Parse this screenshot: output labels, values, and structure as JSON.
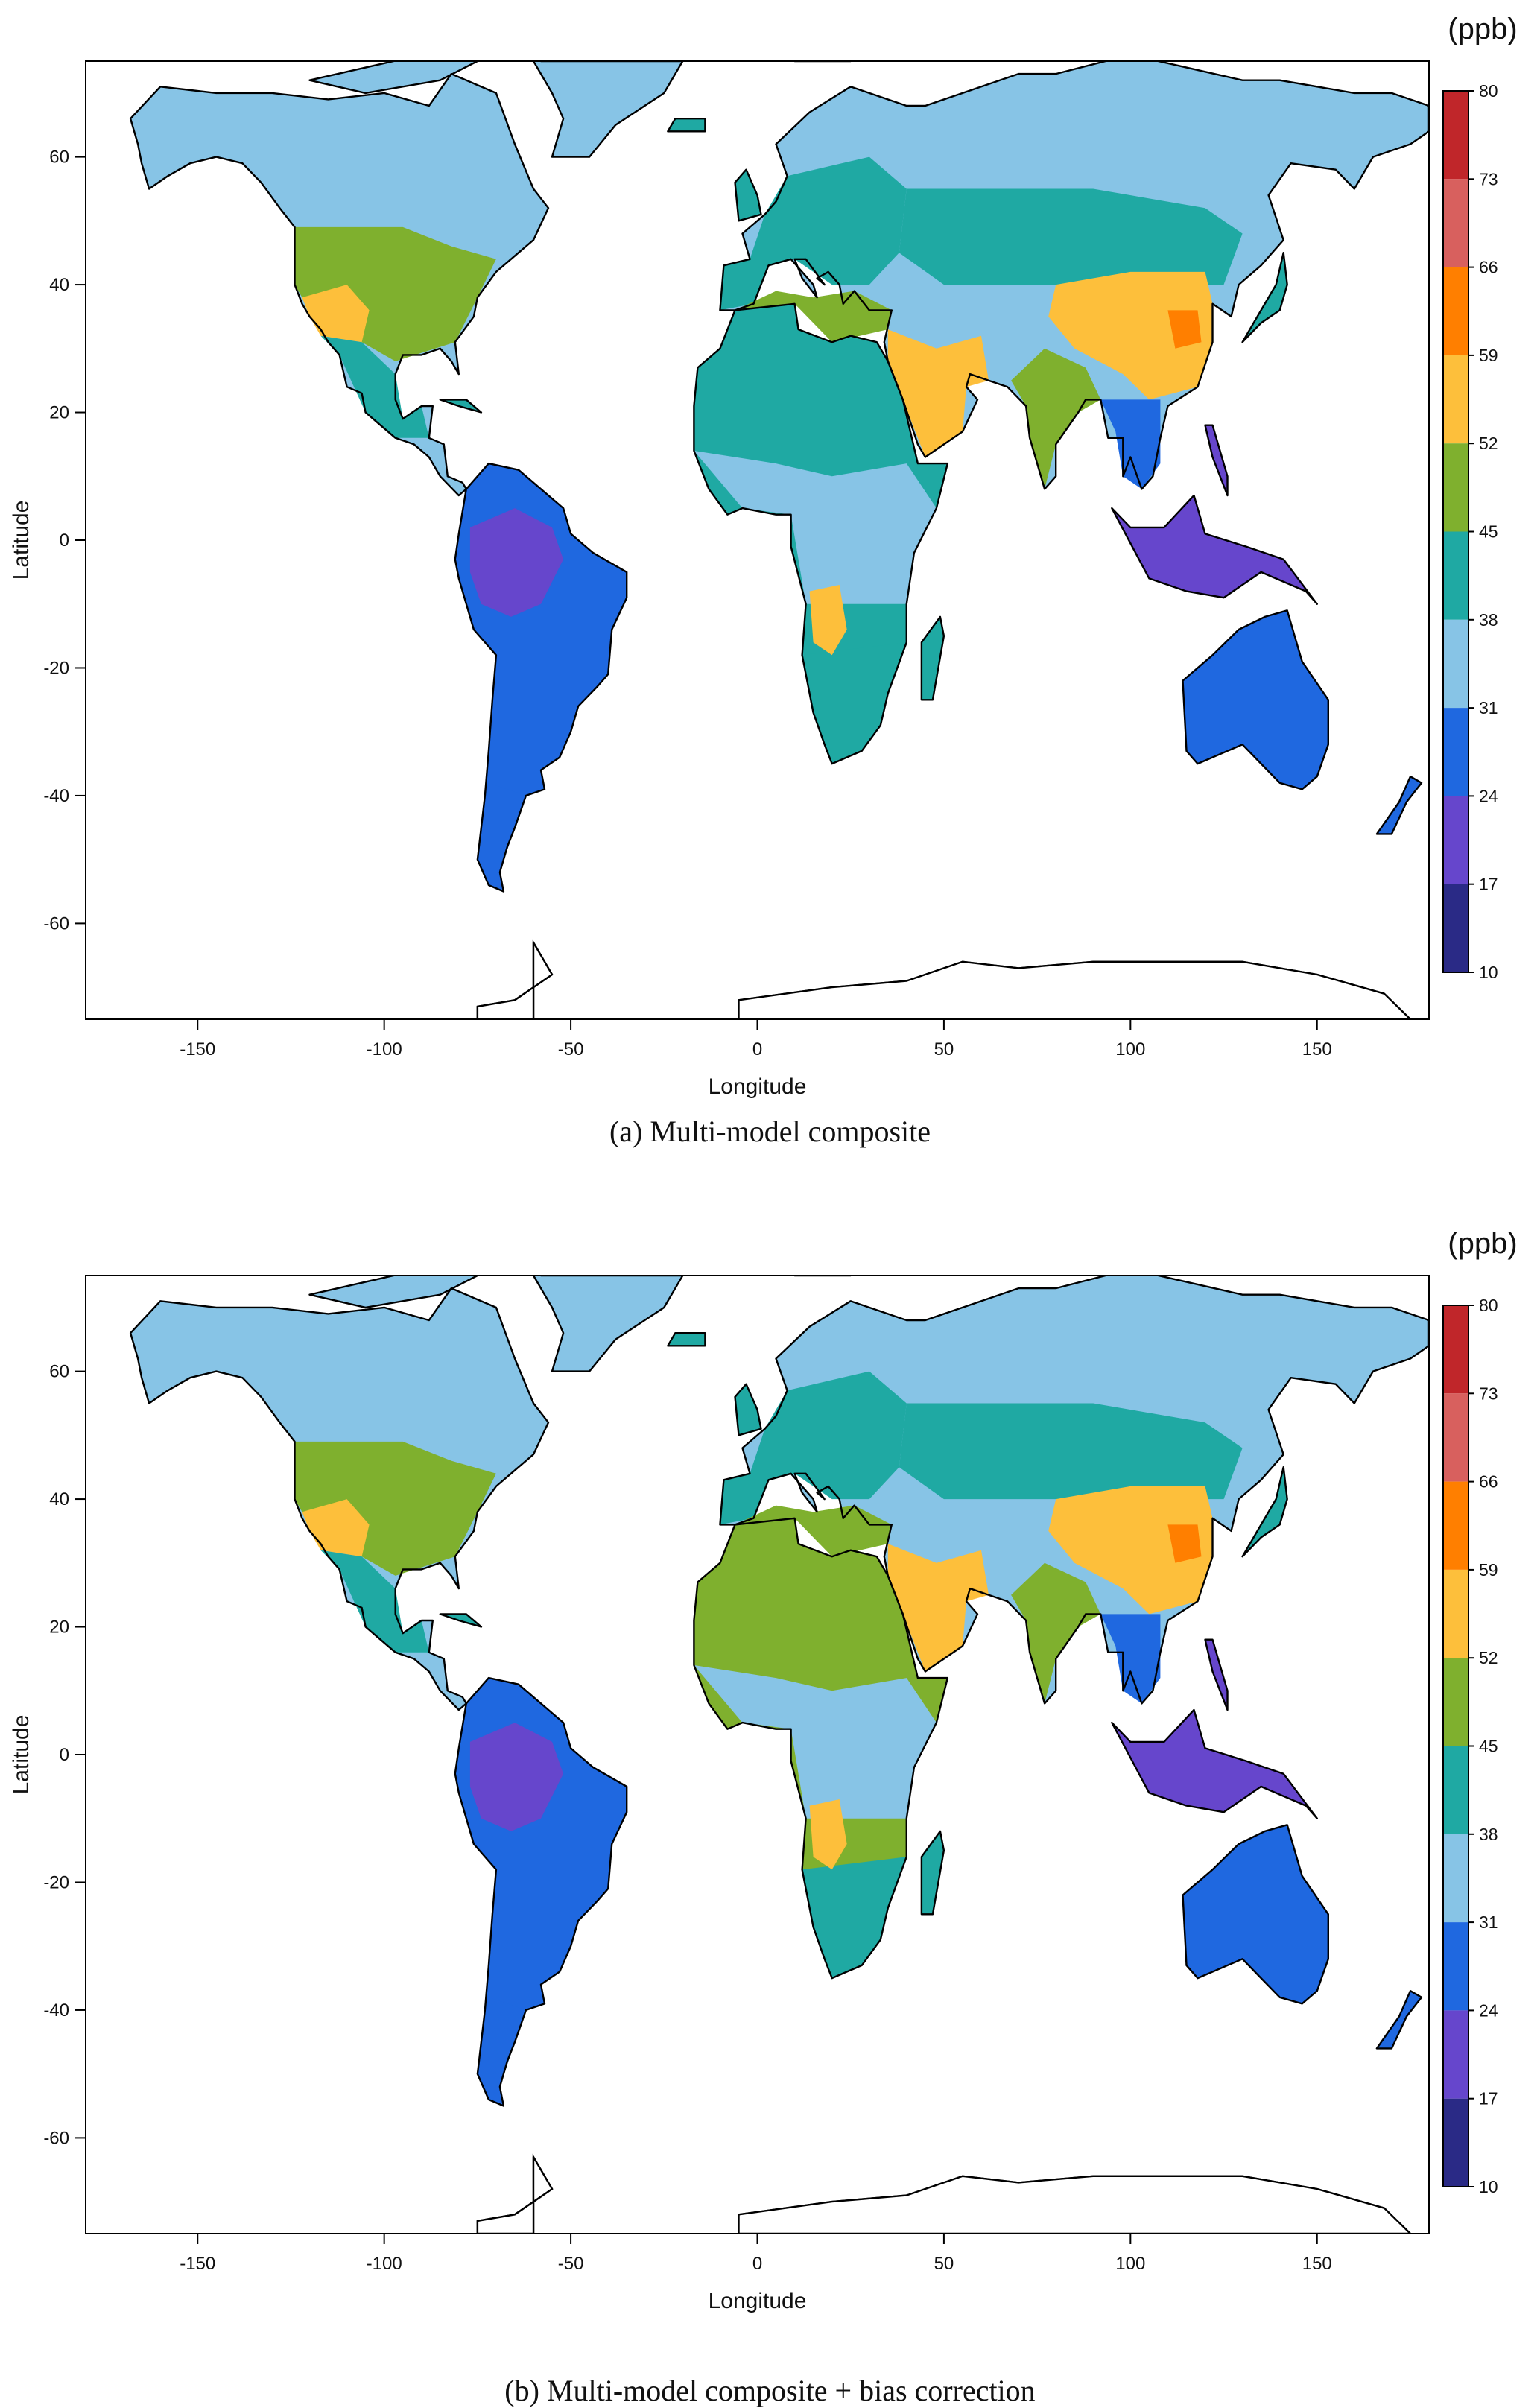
{
  "figure": {
    "panels": [
      {
        "id": "a",
        "caption": "(a) Multi-model composite"
      },
      {
        "id": "b",
        "caption": "(b) Multi-model composite + bias correction"
      }
    ],
    "xlabel": "Longitude",
    "ylabel": "Latitude",
    "unit_label": "(ppb)",
    "x_ticks": [
      "-150",
      "-100",
      "-50",
      "0",
      "50",
      "100",
      "150"
    ],
    "y_ticks": [
      "60",
      "40",
      "20",
      "0",
      "-20",
      "-40",
      "-60"
    ],
    "colorbar": {
      "ticks": [
        "80",
        "73",
        "66",
        "59",
        "52",
        "45",
        "38",
        "31",
        "24",
        "17",
        "10"
      ],
      "colors": [
        "#C0262A",
        "#D8605E",
        "#FF7F00",
        "#FDBF3B",
        "#7FB02E",
        "#1FA9A3",
        "#87C4E6",
        "#1F68E0",
        "#6646CC",
        "#2A2A86"
      ]
    }
  },
  "chart_data": [
    {
      "type": "heatmap",
      "title": "(a) Multi-model composite",
      "xlabel": "Longitude",
      "ylabel": "Latitude",
      "xlim": [
        -180,
        180
      ],
      "ylim": [
        -75,
        75
      ],
      "colorbar_unit": "(ppb)",
      "colorbar_levels": [
        10,
        17,
        24,
        31,
        38,
        45,
        52,
        59,
        66,
        73,
        80
      ],
      "regions": [
        {
          "name": "Canada/Alaska",
          "value": 34
        },
        {
          "name": "Contiguous US",
          "value": 48
        },
        {
          "name": "US Southwest",
          "value": 54
        },
        {
          "name": "Mexico",
          "value": 42
        },
        {
          "name": "Amazon",
          "value": 20
        },
        {
          "name": "Brazil/South America",
          "value": 28
        },
        {
          "name": "Patagonia",
          "value": 27
        },
        {
          "name": "Europe",
          "value": 41
        },
        {
          "name": "Mediterranean",
          "value": 50
        },
        {
          "name": "Northern Russia",
          "value": 34
        },
        {
          "name": "Central Asia",
          "value": 41
        },
        {
          "name": "Middle East",
          "value": 55
        },
        {
          "name": "Sahara",
          "value": 43
        },
        {
          "name": "Central Africa",
          "value": 36
        },
        {
          "name": "Southern Africa",
          "value": 40
        },
        {
          "name": "Angola/Zambia hotspot",
          "value": 57
        },
        {
          "name": "India",
          "value": 48
        },
        {
          "name": "China",
          "value": 56
        },
        {
          "name": "Eastern China hotspot",
          "value": 63
        },
        {
          "name": "Southeast Asia",
          "value": 30
        },
        {
          "name": "Indonesia/New Guinea",
          "value": 21
        },
        {
          "name": "Australia",
          "value": 30
        },
        {
          "name": "New Zealand",
          "value": 28
        }
      ]
    },
    {
      "type": "heatmap",
      "title": "(b) Multi-model composite + bias correction",
      "xlabel": "Longitude",
      "ylabel": "Latitude",
      "xlim": [
        -180,
        180
      ],
      "ylim": [
        -75,
        75
      ],
      "colorbar_unit": "(ppb)",
      "colorbar_levels": [
        10,
        17,
        24,
        31,
        38,
        45,
        52,
        59,
        66,
        73,
        80
      ],
      "regions": [
        {
          "name": "Canada/Alaska",
          "value": 34
        },
        {
          "name": "Contiguous US",
          "value": 48
        },
        {
          "name": "US Southwest",
          "value": 56
        },
        {
          "name": "Mexico",
          "value": 44
        },
        {
          "name": "Amazon",
          "value": 20
        },
        {
          "name": "Brazil/South America",
          "value": 28
        },
        {
          "name": "Patagonia",
          "value": 27
        },
        {
          "name": "Europe",
          "value": 41
        },
        {
          "name": "Mediterranean",
          "value": 50
        },
        {
          "name": "Northern Russia",
          "value": 34
        },
        {
          "name": "Central Asia",
          "value": 41
        },
        {
          "name": "Middle East",
          "value": 55
        },
        {
          "name": "Sahara",
          "value": 45
        },
        {
          "name": "Central Africa",
          "value": 34
        },
        {
          "name": "Southern Africa",
          "value": 40
        },
        {
          "name": "Angola/Zambia hotspot",
          "value": 57
        },
        {
          "name": "India",
          "value": 48
        },
        {
          "name": "China",
          "value": 56
        },
        {
          "name": "Eastern China hotspot",
          "value": 63
        },
        {
          "name": "Southeast Asia",
          "value": 30
        },
        {
          "name": "Indonesia/New Guinea",
          "value": 21
        },
        {
          "name": "Australia",
          "value": 28
        },
        {
          "name": "New Zealand",
          "value": 28
        }
      ]
    }
  ]
}
